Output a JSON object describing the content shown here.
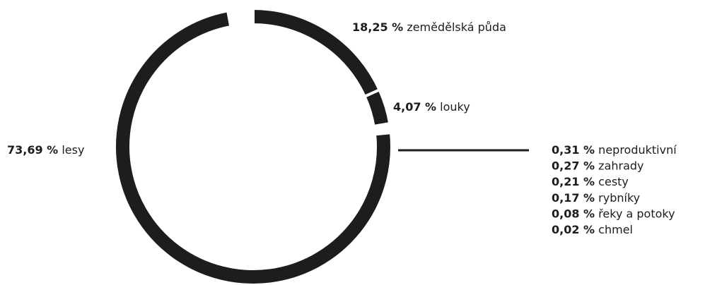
{
  "chart_data": {
    "type": "donut",
    "categories": [
      "lesy",
      "zemědělská půda",
      "louky",
      "neproduktivní",
      "zahrady",
      "cesty",
      "rybníky",
      "řeky a potoky",
      "chmel"
    ],
    "values": [
      73.69,
      18.25,
      4.07,
      0.31,
      0.27,
      0.21,
      0.17,
      0.08,
      0.02
    ],
    "value_labels": [
      "73,69 %",
      "18,25 %",
      "4,07 %",
      "0,31 %",
      "0,27 %",
      "0,21 %",
      "0,17 %",
      "0,08 %",
      "0,02 %"
    ],
    "color": "#1d1d1b"
  }
}
